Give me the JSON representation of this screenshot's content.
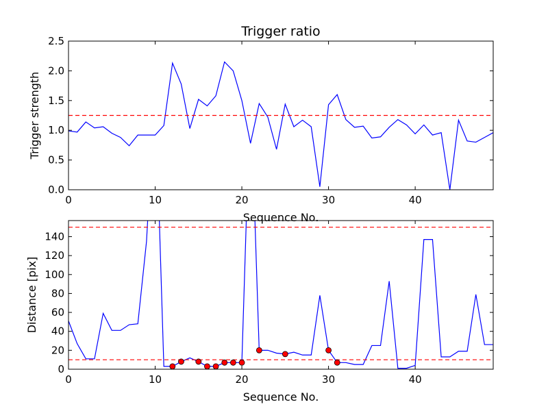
{
  "chart_data": [
    {
      "type": "line",
      "title": "Trigger ratio",
      "xlabel": "Sequence No.",
      "ylabel": "Trigger strength",
      "xlim": [
        0,
        49
      ],
      "ylim": [
        0,
        2.5
      ],
      "xticks": [
        0,
        10,
        20,
        30,
        40
      ],
      "yticks": [
        0.0,
        0.5,
        1.0,
        1.5,
        2.0,
        2.5
      ],
      "ytick_labels": [
        "0.0",
        "0.5",
        "1.0",
        "1.5",
        "2.0",
        "2.5"
      ],
      "grid": false,
      "series": [
        {
          "color": "#0000ff",
          "x": [
            0,
            1,
            2,
            3,
            4,
            5,
            6,
            7,
            8,
            9,
            10,
            11,
            12,
            13,
            14,
            15,
            16,
            17,
            18,
            19,
            20,
            21,
            22,
            23,
            24,
            25,
            26,
            27,
            28,
            29,
            30,
            31,
            32,
            33,
            34,
            35,
            36,
            37,
            38,
            39,
            40,
            41,
            42,
            43,
            44,
            45,
            46,
            47,
            48,
            49
          ],
          "values": [
            0.99,
            0.97,
            1.14,
            1.04,
            1.06,
            0.95,
            0.88,
            0.74,
            0.92,
            0.92,
            0.92,
            1.08,
            2.13,
            1.78,
            1.03,
            1.52,
            1.41,
            1.58,
            2.15,
            2.0,
            1.5,
            0.78,
            1.45,
            1.22,
            0.68,
            1.44,
            1.06,
            1.17,
            1.06,
            0.05,
            1.43,
            1.6,
            1.18,
            1.05,
            1.07,
            0.87,
            0.89,
            1.05,
            1.18,
            1.09,
            0.94,
            1.09,
            0.92,
            0.96,
            0.0,
            1.17,
            0.82,
            0.8,
            0.88,
            0.96
          ]
        }
      ],
      "reference_lines": [
        {
          "axis": "y",
          "value": 1.25,
          "color": "#ff0000",
          "style": "dashed"
        }
      ]
    },
    {
      "type": "line",
      "title": "",
      "xlabel": "Sequence No.",
      "ylabel": "Distance [pix]",
      "xlim": [
        0,
        49
      ],
      "ylim": [
        0,
        157
      ],
      "xticks": [
        0,
        10,
        20,
        30,
        40
      ],
      "yticks": [
        0,
        20,
        40,
        60,
        80,
        100,
        120,
        140
      ],
      "ytick_labels": [
        "0",
        "20",
        "40",
        "60",
        "80",
        "100",
        "120",
        "140"
      ],
      "grid": false,
      "series": [
        {
          "color": "#0000ff",
          "x": [
            0,
            1,
            2,
            3,
            4,
            5,
            6,
            7,
            8,
            9,
            10,
            11,
            12,
            13,
            14,
            15,
            16,
            17,
            18,
            19,
            20,
            21,
            22,
            23,
            24,
            25,
            26,
            27,
            28,
            29,
            30,
            31,
            32,
            33,
            34,
            35,
            36,
            37,
            38,
            39,
            40,
            41,
            42,
            43,
            44,
            45,
            46,
            47,
            48,
            49
          ],
          "values": [
            51,
            27,
            11,
            11,
            59,
            41,
            41,
            47,
            48,
            135,
            300,
            3,
            3,
            8,
            12,
            8,
            3,
            3,
            7,
            7,
            7,
            300,
            20,
            20,
            17,
            16,
            18,
            15,
            15,
            78,
            20,
            7,
            7,
            5,
            5,
            25,
            25,
            93,
            1,
            1,
            4,
            137,
            137,
            13,
            13,
            19,
            19,
            79,
            26,
            26
          ]
        }
      ],
      "markers": {
        "color": "#ff0000",
        "x": [
          12,
          13,
          15,
          16,
          17,
          18,
          19,
          20,
          22,
          25,
          30,
          31
        ],
        "values": [
          3,
          8,
          8,
          3,
          3,
          7,
          7,
          7,
          20,
          16,
          20,
          7
        ]
      },
      "reference_lines": [
        {
          "axis": "y",
          "value": 150,
          "color": "#ff0000",
          "style": "dashed"
        },
        {
          "axis": "y",
          "value": 10,
          "color": "#ff0000",
          "style": "dashed"
        }
      ]
    }
  ]
}
